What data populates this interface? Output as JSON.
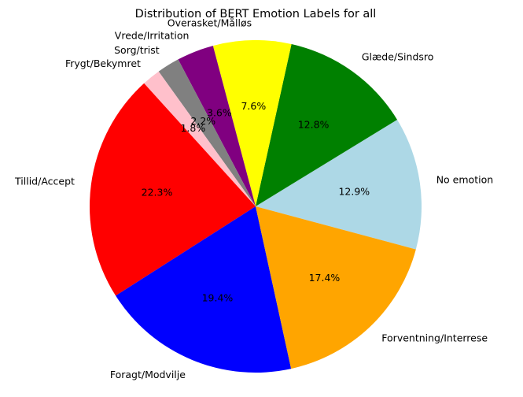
{
  "chart_data": {
    "type": "pie",
    "title": "Distribution of BERT Emotion Labels for all",
    "start_angle_deg": -15,
    "direction": "counterclockwise",
    "slices": [
      {
        "label": "No emotion",
        "value": 12.9,
        "pct_label": "12.9%",
        "color": "#add8e6"
      },
      {
        "label": "Glæde/Sindsro",
        "value": 12.8,
        "pct_label": "12.8%",
        "color": "#008000"
      },
      {
        "label": "Overasket/Målløs",
        "value": 7.6,
        "pct_label": "7.6%",
        "color": "#ffff00"
      },
      {
        "label": "Vrede/Irritation",
        "value": 3.6,
        "pct_label": "3.6%",
        "color": "#800080"
      },
      {
        "label": "Sorg/trist",
        "value": 2.2,
        "pct_label": "2.2%",
        "color": "#808080"
      },
      {
        "label": "Frygt/Bekymret",
        "value": 1.8,
        "pct_label": "1.8%",
        "color": "#ffc0cb"
      },
      {
        "label": "Tillid/Accept",
        "value": 22.3,
        "pct_label": "22.3%",
        "color": "#ff0000"
      },
      {
        "label": "Foragt/Modvilje",
        "value": 19.4,
        "pct_label": "19.4%",
        "color": "#0000ff"
      },
      {
        "label": "Forventning/Interrese",
        "value": 17.4,
        "pct_label": "17.4%",
        "color": "#ffa500"
      }
    ]
  }
}
